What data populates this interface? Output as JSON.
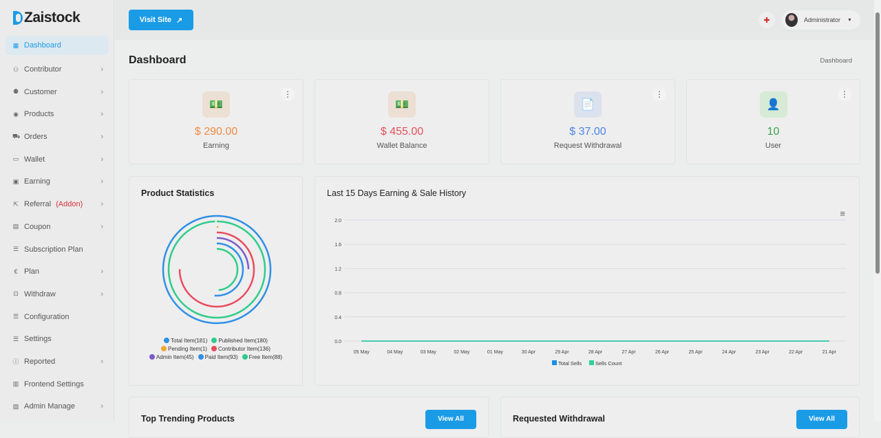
{
  "brand": "Zaistock",
  "sidebar": {
    "items": [
      {
        "label": "Dashboard",
        "icon": "grid-icon",
        "active": true,
        "chev": false
      },
      {
        "label": "Contributor",
        "icon": "user-icon",
        "chev": true
      },
      {
        "label": "Customer",
        "icon": "users-icon",
        "chev": true
      },
      {
        "label": "Products",
        "icon": "box-icon",
        "chev": true
      },
      {
        "label": "Orders",
        "icon": "cart-icon",
        "chev": true
      },
      {
        "label": "Wallet",
        "icon": "wallet-icon",
        "chev": true
      },
      {
        "label": "Earning",
        "icon": "money-icon",
        "chev": true
      },
      {
        "label": "Referral",
        "badge": "(Addon)",
        "icon": "share-icon",
        "chev": true
      },
      {
        "label": "Coupon",
        "icon": "ticket-icon",
        "chev": true
      },
      {
        "label": "Subscription Plan",
        "icon": "stack-icon",
        "chev": false
      },
      {
        "label": "Plan",
        "icon": "euro-icon",
        "chev": true
      },
      {
        "label": "Withdraw",
        "icon": "withdraw-icon",
        "chev": true
      },
      {
        "label": "Configuration",
        "icon": "stack-icon",
        "chev": false
      },
      {
        "label": "Settings",
        "icon": "stack-icon",
        "chev": false
      },
      {
        "label": "Reported",
        "icon": "info-icon",
        "chev": true
      },
      {
        "label": "Frontend Settings",
        "icon": "frontend-icon",
        "chev": false
      },
      {
        "label": "Admin Manage",
        "icon": "admin-icon",
        "chev": true
      }
    ]
  },
  "topbar": {
    "visit_label": "Visit Site",
    "user_name": "Administrator"
  },
  "page": {
    "title": "Dashboard",
    "breadcrumb": "Dashboard"
  },
  "stats": [
    {
      "value": "$ 290.00",
      "label": "Earning",
      "color": "#ee8a45",
      "bg": "#ecdfd3",
      "icon": "💵"
    },
    {
      "value": "$ 455.00",
      "label": "Wallet Balance",
      "color": "#e4505a",
      "bg": "#ecdfd3",
      "icon": "💵"
    },
    {
      "value": "$ 37.00",
      "label": "Request Withdrawal",
      "color": "#4a86e0",
      "bg": "#dbe2ee",
      "icon": "📄"
    },
    {
      "value": "10",
      "label": "User",
      "color": "#3aa54a",
      "bg": "#d6ead6",
      "icon": "👤"
    }
  ],
  "chart_data": [
    {
      "type": "radialBar",
      "title": "Product Statistics",
      "max": 181,
      "series": [
        {
          "name": "Total Item",
          "value": 181,
          "label": "Total Item(181)",
          "color": "#2e8fe6"
        },
        {
          "name": "Published Item",
          "value": 180,
          "label": "Published Item(180)",
          "color": "#2ecc8a"
        },
        {
          "name": "Pending Item",
          "value": 1,
          "label": "Pending Item(1)",
          "color": "#f0a830"
        },
        {
          "name": "Contributor Item",
          "value": 136,
          "label": "Contributor Item(136)",
          "color": "#ea4a5e"
        },
        {
          "name": "Admin Item",
          "value": 45,
          "label": "Admin Item(45)",
          "color": "#7a5cc8"
        },
        {
          "name": "Paid Item",
          "value": 93,
          "label": "Paid Item(93)",
          "color": "#2e8fe6"
        },
        {
          "name": "Free Item",
          "value": 88,
          "label": "Free Item(88)",
          "color": "#2ecc8a"
        }
      ]
    },
    {
      "type": "line",
      "title": "Last 15 Days Earning & Sale History",
      "categories": [
        "05 May",
        "04 May",
        "03 May",
        "02 May",
        "01 May",
        "30 Apr",
        "29 Apr",
        "28 Apr",
        "27 Apr",
        "26 Apr",
        "25 Apr",
        "24 Apr",
        "23 Apr",
        "22 Apr",
        "21 Apr"
      ],
      "yticks": [
        "0.0",
        "0.4",
        "0.8",
        "1.2",
        "1.6",
        "2.0"
      ],
      "ylim": [
        0,
        2
      ],
      "series": [
        {
          "name": "Total Sells",
          "color": "#1a8fe6",
          "values": [
            0,
            0,
            0,
            0,
            0,
            0,
            0,
            0,
            0,
            0,
            0,
            0,
            0,
            0,
            0
          ]
        },
        {
          "name": "Sells Count",
          "color": "#2ed19a",
          "values": [
            0,
            0,
            0,
            0,
            0,
            0,
            0,
            0,
            0,
            0,
            0,
            0,
            0,
            0,
            0
          ]
        }
      ]
    }
  ],
  "bottom": {
    "left_title": "Top Trending Products",
    "right_title": "Requested Withdrawal",
    "view_all": "View All"
  }
}
